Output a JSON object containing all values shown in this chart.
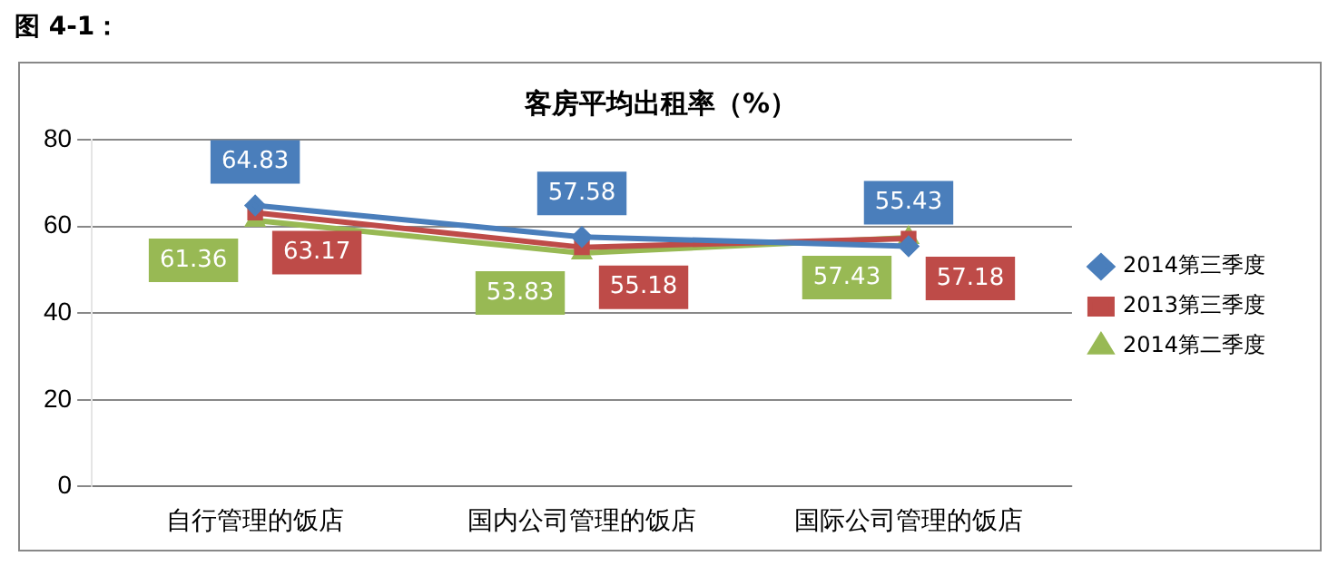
{
  "chart_data": {
    "type": "line",
    "title": "客房平均出租率（%）",
    "annotations": [
      "图 4-1："
    ],
    "categories": [
      "自行管理的饭店",
      "国内公司管理的饭店",
      "国际公司管理的饭店"
    ],
    "series": [
      {
        "name": "2014第三季度",
        "color": "#4a7ebb",
        "values": [
          64.83,
          57.58,
          55.43
        ],
        "marker": "diamond"
      },
      {
        "name": "2013第三季度",
        "color": "#be4b48",
        "values": [
          63.17,
          55.18,
          57.18
        ],
        "marker": "square"
      },
      {
        "name": "2014第二季度",
        "color": "#98b954",
        "values": [
          61.36,
          53.83,
          57.43
        ],
        "marker": "triangle"
      }
    ],
    "ylim": [
      0,
      80
    ],
    "yticks": [
      0,
      20,
      40,
      60,
      80
    ],
    "grid": "y",
    "legend": "right",
    "data_labels": true,
    "line_style": "solid"
  }
}
